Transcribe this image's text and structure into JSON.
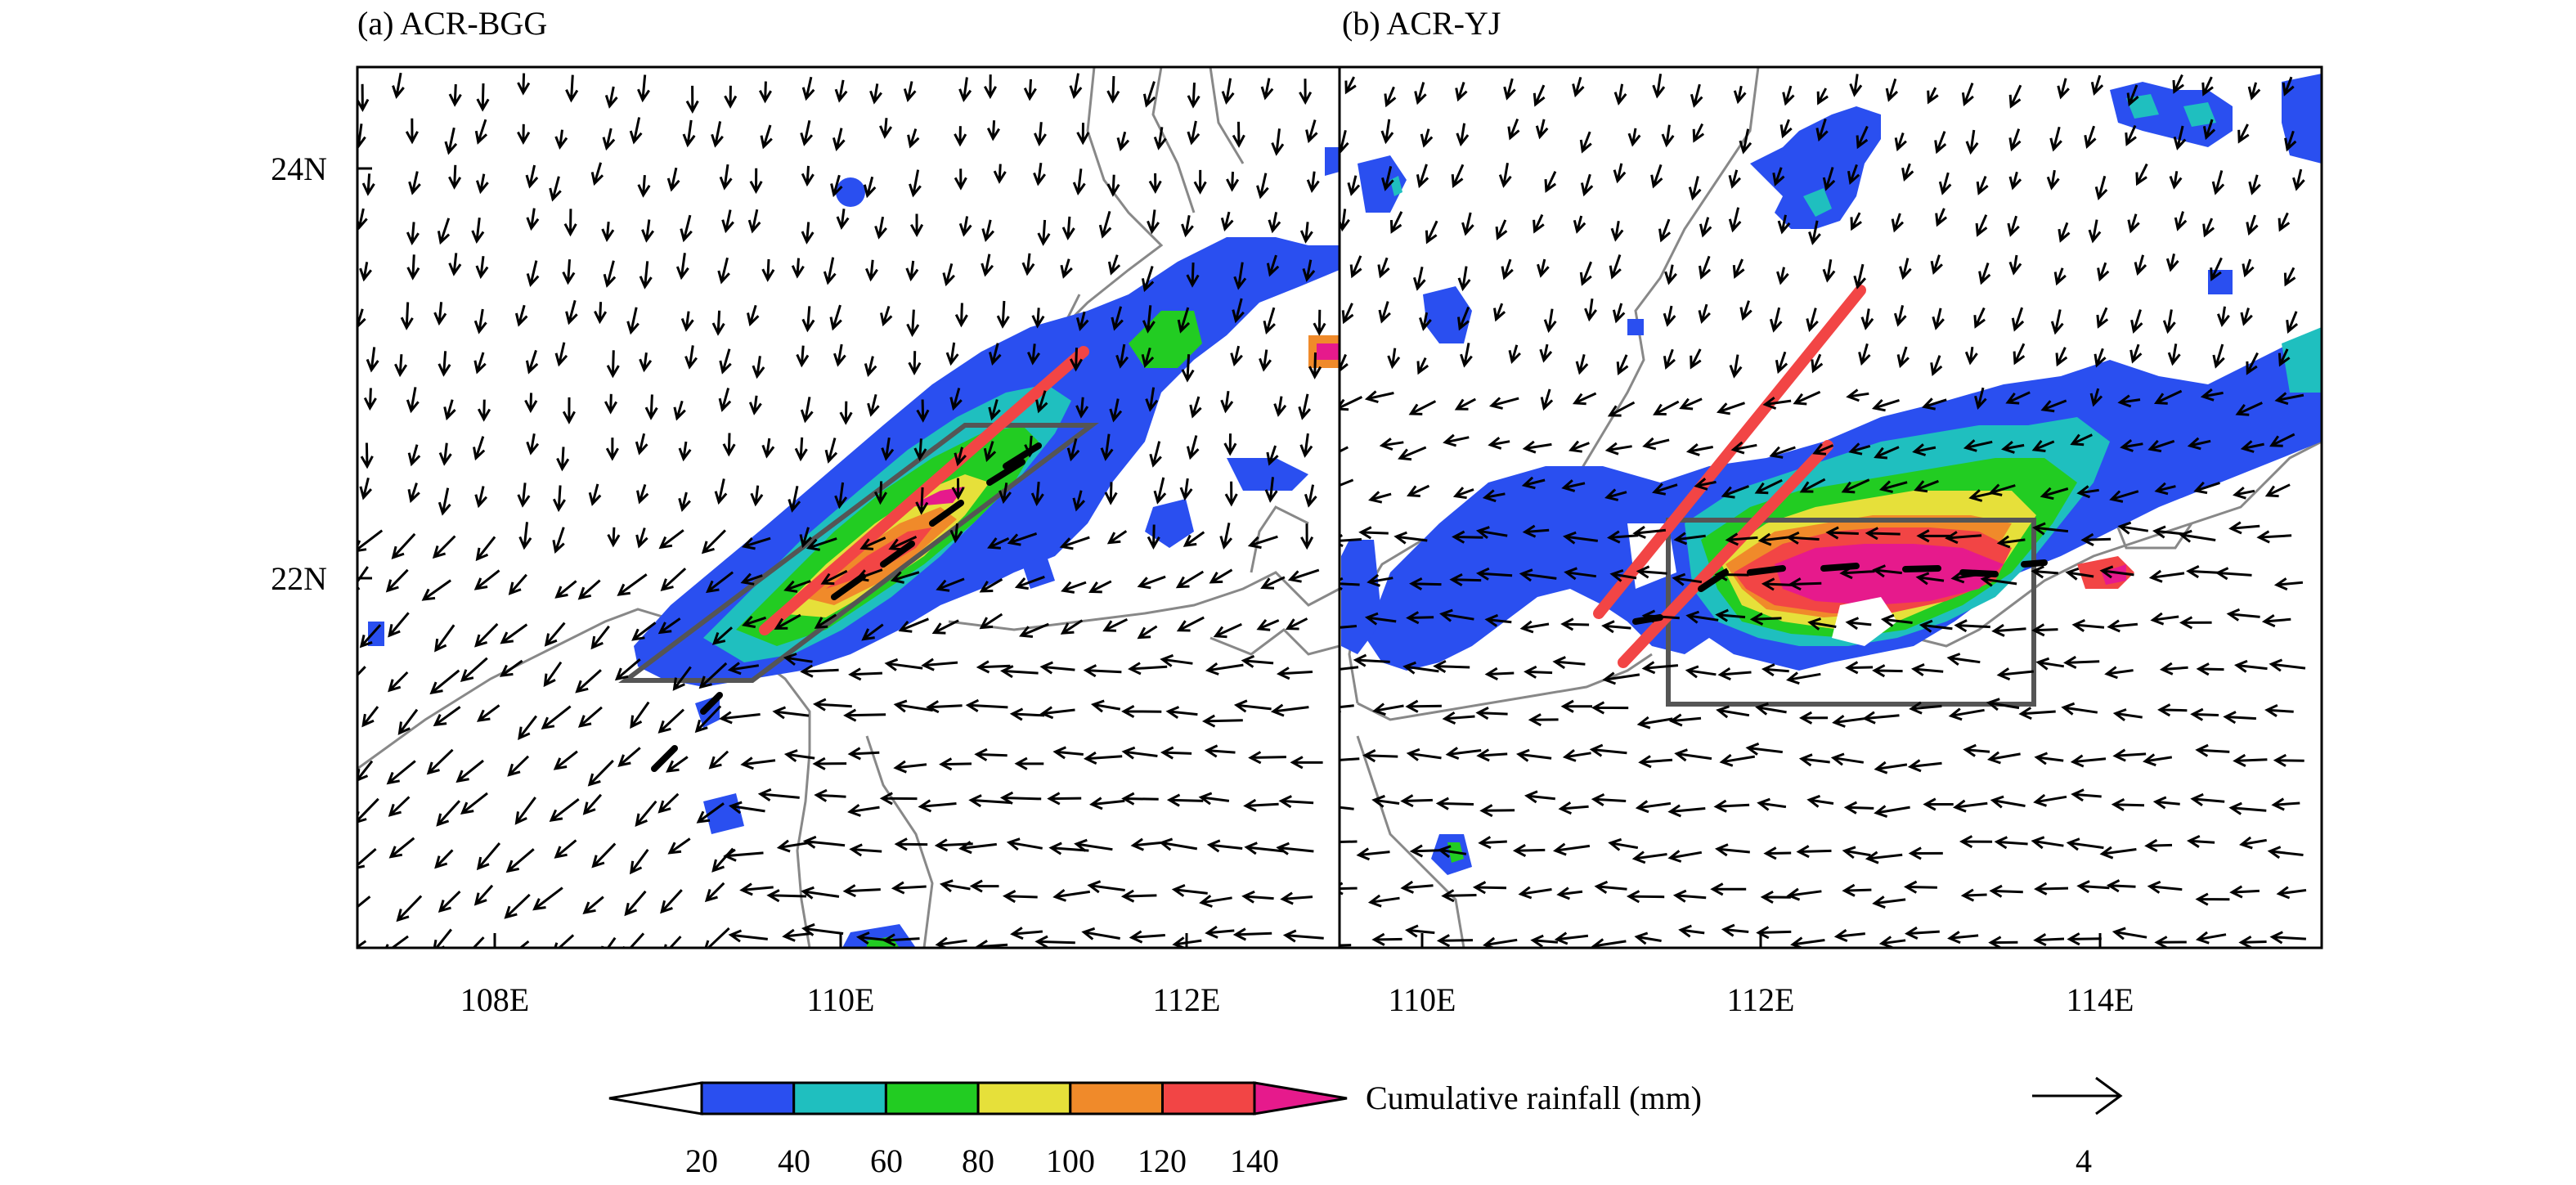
{
  "panels": [
    {
      "title": "(a) ACR-BGG",
      "x_ticks": [
        "108E",
        "110E",
        "112E"
      ],
      "y_ticks": [
        "24N",
        "22N"
      ]
    },
    {
      "title": "(b) ACR-YJ",
      "x_ticks": [
        "110E",
        "112E",
        "114E"
      ]
    }
  ],
  "colorbar": {
    "label": "Cumulative rainfall (mm)",
    "levels": [
      "20",
      "40",
      "60",
      "80",
      "100",
      "120",
      "140"
    ],
    "colors": [
      "#2a4ff0",
      "#1fbfbf",
      "#22cc22",
      "#e6e03a",
      "#f08a2a",
      "#f24545",
      "#e61a8c"
    ]
  },
  "reference_vector": {
    "label": "4"
  },
  "colors": {
    "rain_blue": "#2a4ff0",
    "rain_cyan": "#1fbfbf",
    "rain_green": "#22cc22",
    "rain_yellow": "#e6e03a",
    "rain_orange": "#f08a2a",
    "rain_red": "#f24545",
    "rain_magenta": "#e61a8c",
    "convergence_line": "#f24545",
    "box": "#555555",
    "coastline": "#888888"
  }
}
